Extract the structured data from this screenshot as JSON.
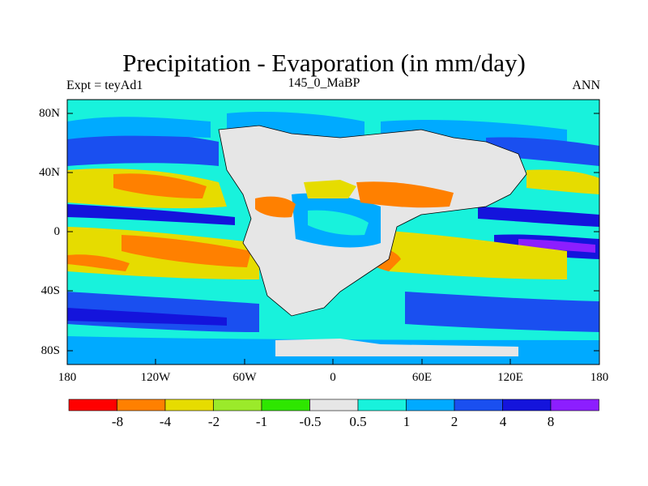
{
  "title": "Precipitation - Evaporation (in mm/day)",
  "left_string": "Expt = teyAd1",
  "center_string": "145_0_MaBP",
  "right_string": "ANN",
  "lat_labels": [
    "80N",
    "40N",
    "0",
    "40S",
    "80S"
  ],
  "lon_labels": [
    "180",
    "120W",
    "60W",
    "0",
    "60E",
    "120E",
    "180"
  ],
  "colorbar": {
    "colors": [
      "#ff0000",
      "#ff8000",
      "#e6dc00",
      "#9bea2a",
      "#2ee600",
      "#e6e6e6",
      "#18f2dc",
      "#00aaff",
      "#1a4ff0",
      "#1414dc",
      "#8c1eff"
    ],
    "labels": [
      "-8",
      "-4",
      "-2",
      "-1",
      "-0.5",
      "0.5",
      "1",
      "2",
      "4",
      "8"
    ]
  }
}
